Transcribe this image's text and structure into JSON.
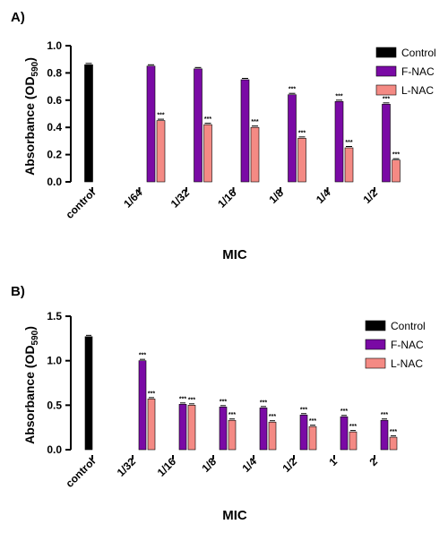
{
  "chart_data": [
    {
      "panel_label": "A)",
      "type": "bar",
      "categories": [
        "control",
        "1/64",
        "1/32",
        "1/16",
        "1/8",
        "1/4",
        "1/2"
      ],
      "series": [
        {
          "name": "Control",
          "color": "#000000",
          "values": [
            0.86,
            null,
            null,
            null,
            null,
            null,
            null
          ]
        },
        {
          "name": "F-NAC",
          "color": "#7a0aa5",
          "values": [
            null,
            0.85,
            0.83,
            0.75,
            0.64,
            0.59,
            0.57
          ]
        },
        {
          "name": "L-NAC",
          "color": "#f48a84",
          "values": [
            null,
            0.45,
            0.42,
            0.4,
            0.32,
            0.25,
            0.16
          ]
        }
      ],
      "significance": [
        {
          "category": "1/64",
          "series": "L-NAC",
          "label": "***"
        },
        {
          "category": "1/32",
          "series": "L-NAC",
          "label": "***"
        },
        {
          "category": "1/16",
          "series": "L-NAC",
          "label": "***"
        },
        {
          "category": "1/8",
          "series": "F-NAC",
          "label": "***"
        },
        {
          "category": "1/8",
          "series": "L-NAC",
          "label": "***"
        },
        {
          "category": "1/4",
          "series": "F-NAC",
          "label": "***"
        },
        {
          "category": "1/4",
          "series": "L-NAC",
          "label": "***"
        },
        {
          "category": "1/2",
          "series": "F-NAC",
          "label": "***"
        },
        {
          "category": "1/2",
          "series": "L-NAC",
          "label": "***"
        }
      ],
      "xlabel": "MIC",
      "ylabel_main": "Absorbance (OD",
      "ylabel_sub": "590",
      "ylabel_close": ")",
      "ylim": [
        0,
        1.0
      ],
      "yticks": [
        0.0,
        0.2,
        0.4,
        0.6,
        0.8,
        1.0
      ],
      "ytick_labels": [
        "0.0",
        "0.2",
        "0.4",
        "0.6",
        "0.8",
        "1.0"
      ],
      "legend_position": "top-right",
      "grid": false
    },
    {
      "panel_label": "B)",
      "type": "bar",
      "categories": [
        "control",
        "1/32",
        "1/16",
        "1/8",
        "1/4",
        "1/2",
        "1",
        "2"
      ],
      "series": [
        {
          "name": "Control",
          "color": "#000000",
          "values": [
            1.27,
            null,
            null,
            null,
            null,
            null,
            null,
            null
          ]
        },
        {
          "name": "F-NAC",
          "color": "#7a0aa5",
          "values": [
            null,
            1.0,
            0.51,
            0.48,
            0.47,
            0.39,
            0.37,
            0.33
          ]
        },
        {
          "name": "L-NAC",
          "color": "#f48a84",
          "values": [
            null,
            0.57,
            0.5,
            0.33,
            0.31,
            0.26,
            0.2,
            0.14
          ]
        }
      ],
      "significance": [
        {
          "category": "1/32",
          "series": "F-NAC",
          "label": "***"
        },
        {
          "category": "1/32",
          "series": "L-NAC",
          "label": "***"
        },
        {
          "category": "1/16",
          "series": "F-NAC",
          "label": "***"
        },
        {
          "category": "1/16",
          "series": "L-NAC",
          "label": "***"
        },
        {
          "category": "1/8",
          "series": "F-NAC",
          "label": "***"
        },
        {
          "category": "1/8",
          "series": "L-NAC",
          "label": "***"
        },
        {
          "category": "1/4",
          "series": "F-NAC",
          "label": "***"
        },
        {
          "category": "1/4",
          "series": "L-NAC",
          "label": "***"
        },
        {
          "category": "1/2",
          "series": "F-NAC",
          "label": "***"
        },
        {
          "category": "1/2",
          "series": "L-NAC",
          "label": "***"
        },
        {
          "category": "1",
          "series": "F-NAC",
          "label": "***"
        },
        {
          "category": "1",
          "series": "L-NAC",
          "label": "***"
        },
        {
          "category": "2",
          "series": "F-NAC",
          "label": "***"
        },
        {
          "category": "2",
          "series": "L-NAC",
          "label": "***"
        }
      ],
      "xlabel": "MIC",
      "ylabel_main": "Absorbance (OD",
      "ylabel_sub": "590",
      "ylabel_close": ")",
      "ylim": [
        0,
        1.5
      ],
      "yticks": [
        0.0,
        0.5,
        1.0,
        1.5
      ],
      "ytick_labels": [
        "0.0",
        "0.5",
        "1.0",
        "1.5"
      ],
      "legend_position": "top-right",
      "grid": false
    }
  ]
}
